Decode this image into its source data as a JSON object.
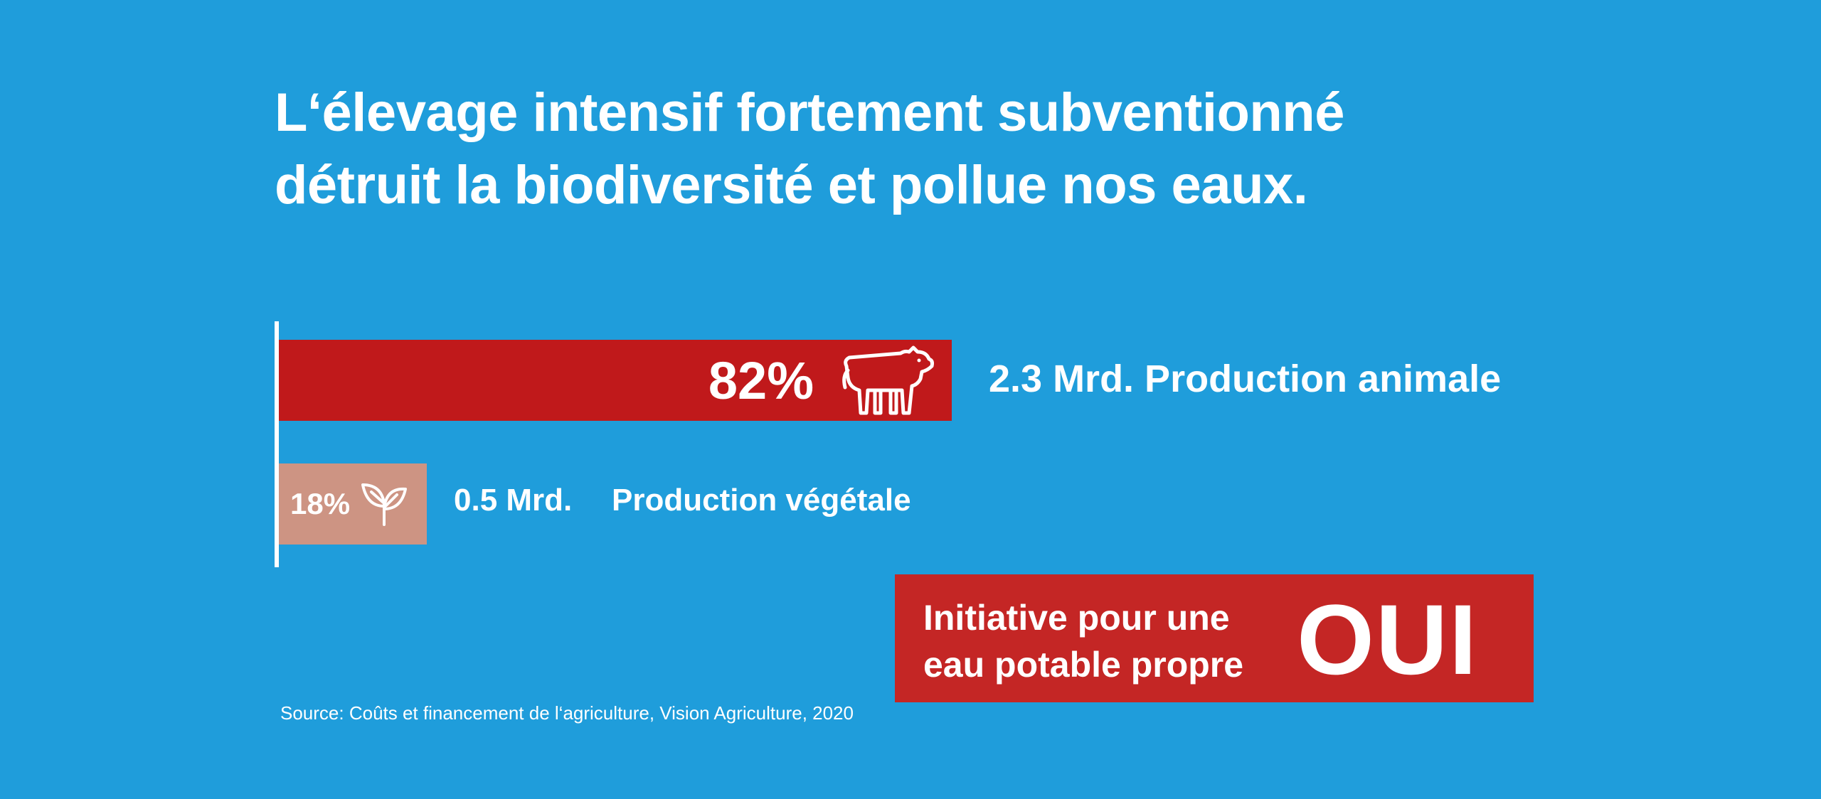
{
  "headline": {
    "line1": "L‘élevage intensif fortement subventionné",
    "line2": "détruit la biodiversité et pollue nos eaux."
  },
  "chart_data": {
    "type": "bar",
    "orientation": "horizontal",
    "categories": [
      "Production animale",
      "Production végétale"
    ],
    "values": [
      82,
      18
    ],
    "unit": "%",
    "amounts": [
      "2.3 Mrd.",
      "0.5 Mrd."
    ],
    "bars": [
      {
        "percent_label": "82%",
        "amount": "2.3 Mrd.",
        "name": "Production animale",
        "icon": "cow-icon",
        "color": "#c0191b"
      },
      {
        "percent_label": "18%",
        "amount": "0.5 Mrd.",
        "name": "Production végétale",
        "icon": "sprout-icon",
        "color": "#cd9483"
      }
    ],
    "xlim": [
      0,
      100
    ]
  },
  "labels": {
    "animal": "2.3 Mrd. Production animale",
    "plant_amount": "0.5 Mrd.",
    "plant_name": "Production végétale"
  },
  "cta": {
    "line1": "Initiative pour une",
    "line2": "eau potable propre",
    "oui": "OUI"
  },
  "source": "Source: Coûts et financement de l‘agriculture, Vision Agriculture, 2020",
  "colors": {
    "background": "#1f9ddb",
    "animal_bar": "#c0191b",
    "plant_bar": "#cd9483",
    "cta": "#c42625"
  }
}
